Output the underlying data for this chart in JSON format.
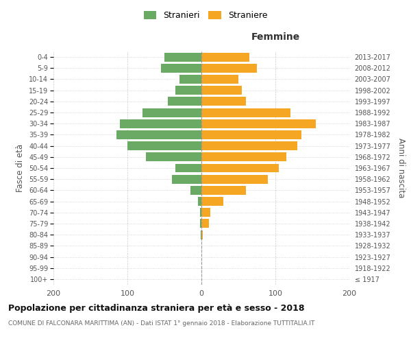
{
  "age_groups": [
    "100+",
    "95-99",
    "90-94",
    "85-89",
    "80-84",
    "75-79",
    "70-74",
    "65-69",
    "60-64",
    "55-59",
    "50-54",
    "45-49",
    "40-44",
    "35-39",
    "30-34",
    "25-29",
    "20-24",
    "15-19",
    "10-14",
    "5-9",
    "0-4"
  ],
  "birth_years": [
    "≤ 1917",
    "1918-1922",
    "1923-1927",
    "1928-1932",
    "1933-1937",
    "1938-1942",
    "1943-1947",
    "1948-1952",
    "1953-1957",
    "1958-1962",
    "1963-1967",
    "1968-1972",
    "1973-1977",
    "1978-1982",
    "1983-1987",
    "1988-1992",
    "1993-1997",
    "1998-2002",
    "2003-2007",
    "2008-2012",
    "2013-2017"
  ],
  "males": [
    0,
    0,
    0,
    0,
    1,
    2,
    2,
    5,
    15,
    40,
    35,
    75,
    100,
    115,
    110,
    80,
    45,
    35,
    30,
    55,
    50
  ],
  "females": [
    0,
    0,
    0,
    0,
    2,
    10,
    12,
    30,
    60,
    90,
    105,
    115,
    130,
    135,
    155,
    120,
    60,
    55,
    50,
    75,
    65
  ],
  "male_color": "#6aaa64",
  "female_color": "#f5a623",
  "male_label": "Stranieri",
  "female_label": "Straniere",
  "title": "Popolazione per cittadinanza straniera per età e sesso - 2018",
  "subtitle": "COMUNE DI FALCONARA MARITTIMA (AN) - Dati ISTAT 1° gennaio 2018 - Elaborazione TUTTITALIA.IT",
  "xlabel_right": "Femmine",
  "ylabel_left": "Fasce di età",
  "ylabel_right": "Anni di nascita",
  "xlim": 200,
  "background_color": "#ffffff",
  "grid_color": "#cccccc"
}
